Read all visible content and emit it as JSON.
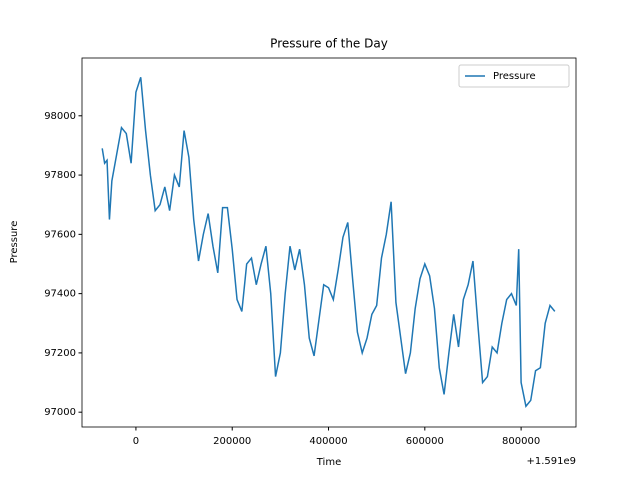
{
  "chart_data": {
    "type": "line",
    "title": "Pressure of the Day",
    "x_label": "Time",
    "y_label": "Pressure",
    "x_offset_label": "+1.591e9",
    "x": [
      -70000,
      -65000,
      -60000,
      -55000,
      -50000,
      -40000,
      -30000,
      -20000,
      -10000,
      0,
      10000,
      20000,
      30000,
      40000,
      50000,
      60000,
      70000,
      80000,
      90000,
      100000,
      110000,
      120000,
      130000,
      140000,
      150000,
      160000,
      170000,
      180000,
      190000,
      200000,
      210000,
      220000,
      230000,
      240000,
      250000,
      260000,
      270000,
      280000,
      290000,
      300000,
      310000,
      320000,
      330000,
      340000,
      350000,
      360000,
      370000,
      380000,
      390000,
      400000,
      410000,
      420000,
      430000,
      440000,
      450000,
      460000,
      470000,
      480000,
      490000,
      500000,
      510000,
      520000,
      530000,
      540000,
      550000,
      560000,
      570000,
      580000,
      590000,
      600000,
      610000,
      620000,
      630000,
      640000,
      650000,
      660000,
      670000,
      680000,
      690000,
      700000,
      710000,
      720000,
      730000,
      740000,
      750000,
      760000,
      770000,
      780000,
      790000,
      795000,
      800000,
      810000,
      820000,
      830000,
      840000,
      850000,
      860000,
      870000
    ],
    "series": [
      {
        "name": "Pressure",
        "color": "#1f77b4",
        "values": [
          97890,
          97840,
          97850,
          97650,
          97780,
          97870,
          97960,
          97940,
          97840,
          98080,
          98130,
          97950,
          97800,
          97680,
          97700,
          97760,
          97680,
          97800,
          97760,
          97950,
          97860,
          97650,
          97510,
          97600,
          97670,
          97560,
          97470,
          97690,
          97690,
          97550,
          97380,
          97340,
          97500,
          97520,
          97430,
          97500,
          97560,
          97400,
          97120,
          97200,
          97400,
          97560,
          97480,
          97550,
          97430,
          97250,
          97190,
          97310,
          97430,
          97420,
          97380,
          97480,
          97590,
          97640,
          97450,
          97270,
          97200,
          97250,
          97330,
          97360,
          97520,
          97600,
          97710,
          97370,
          97250,
          97130,
          97200,
          97350,
          97450,
          97500,
          97460,
          97350,
          97150,
          97060,
          97200,
          97330,
          97220,
          97380,
          97430,
          97510,
          97300,
          97100,
          97120,
          97220,
          97200,
          97300,
          97380,
          97400,
          97360,
          97550,
          97100,
          97020,
          97040,
          97140,
          97150,
          97300,
          97360,
          97340
        ]
      }
    ],
    "xlim": [
      -112000,
      914000
    ],
    "xticks": [
      0,
      200000,
      400000,
      600000,
      800000
    ],
    "ylim": [
      96950,
      98195
    ],
    "yticks": [
      97000,
      97200,
      97400,
      97600,
      97800,
      98000
    ],
    "legend": "upper right"
  }
}
